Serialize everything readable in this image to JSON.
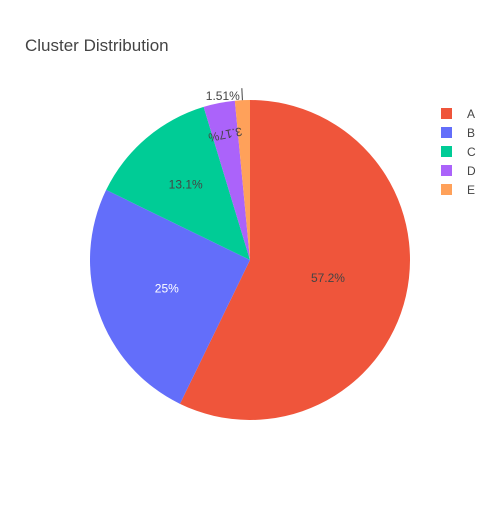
{
  "chart_data": {
    "type": "pie",
    "title": "Cluster Distribution",
    "labels": [
      "A",
      "B",
      "C",
      "D",
      "E"
    ],
    "values": [
      57.2,
      25,
      13.1,
      3.17,
      1.51
    ],
    "text_labels": [
      "57.2%",
      "25%",
      "13.1%",
      "3.17%",
      "1.51%"
    ],
    "colors": [
      "#EF553B",
      "#636EFA",
      "#00CC96",
      "#AB63FA",
      "#FFA15A"
    ],
    "legend": {
      "position": "top-right",
      "entries": [
        "A",
        "B",
        "C",
        "D",
        "E"
      ]
    }
  }
}
